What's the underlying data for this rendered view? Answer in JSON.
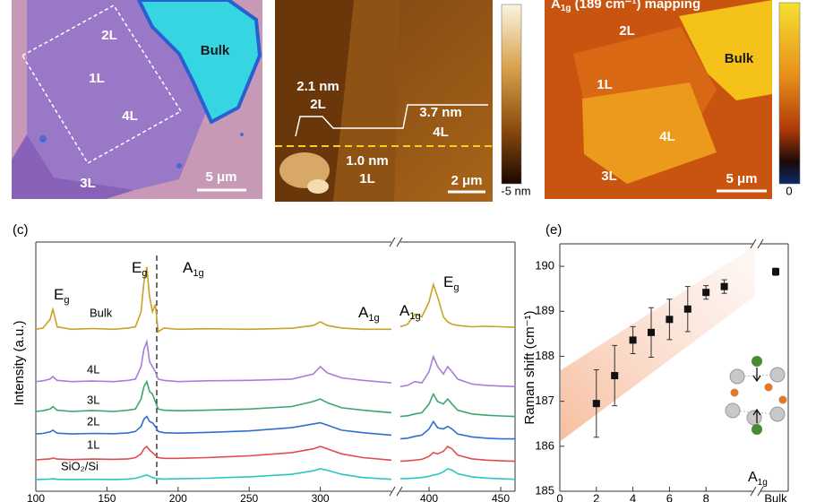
{
  "images": [
    {
      "labels": [
        "2L",
        "1L",
        "4L",
        "3L",
        "Bulk"
      ],
      "scale_bar": "5 μm"
    },
    {
      "labels": [
        "2.1 nm",
        "2L",
        "3.7 nm",
        "4L",
        "1.0 nm",
        "1L"
      ],
      "scale_bar": "2 μm",
      "colorbar_label": "-5 nm"
    },
    {
      "title": [
        "A",
        "1g",
        " (189 cm⁻¹) mapping"
      ],
      "labels": [
        "2L",
        "Bulk",
        "1L",
        "4L",
        "3L"
      ],
      "scale_bar": "5 μm",
      "colorbar_label": "0"
    }
  ],
  "chart_data": [
    {
      "type": "line",
      "panel_label": "(c)",
      "ylabel": "Intensity (a.u.)",
      "x": [
        [
          100,
          105,
          110,
          112,
          115,
          125,
          140,
          155,
          165,
          170,
          174,
          176,
          178,
          180,
          182,
          184,
          186,
          190,
          200,
          220,
          250,
          280,
          295,
          300,
          305,
          315,
          330,
          350
        ],
        [
          380,
          385,
          390,
          395,
          400,
          403,
          406,
          410,
          413,
          416,
          420,
          430,
          440,
          450,
          460
        ]
      ],
      "xlim": [
        [
          100,
          350
        ],
        [
          380,
          460
        ]
      ],
      "xticks": [
        [
          100,
          150,
          200,
          250,
          300
        ],
        [
          400,
          450
        ]
      ],
      "ylim": [
        0,
        100
      ],
      "vline": 185,
      "series": [
        {
          "name": "Bulk",
          "color": "#c9a227",
          "values": [
            [
              65,
              65.5,
              69,
              73,
              66,
              65,
              65.3,
              65,
              65.5,
              66,
              72,
              84,
              90,
              78,
              72,
              75,
              64,
              65.5,
              65,
              65.2,
              65,
              65.4,
              66.5,
              68,
              66.5,
              65.5,
              65,
              65
            ],
            [
              66,
              67,
              71,
              70,
              76,
              83,
              78,
              70,
              68,
              67,
              66.5,
              66,
              66.2,
              66,
              65.8
            ]
          ]
        },
        {
          "name": "4L",
          "color": "#a77fd6",
          "values": [
            [
              44,
              44.3,
              45,
              46,
              44.5,
              44,
              44.2,
              44,
              44.5,
              45,
              50,
              57,
              60,
              52,
              50,
              48,
              45,
              44.5,
              44,
              44.3,
              44.5,
              45,
              47,
              50,
              47.5,
              45.5,
              44.5,
              43.5
            ],
            [
              42,
              42.5,
              44,
              43.5,
              48,
              54,
              50,
              47,
              50,
              48,
              45,
              43,
              42.5,
              42.2,
              42
            ]
          ]
        },
        {
          "name": "3L",
          "color": "#3aa76d",
          "values": [
            [
              32,
              32.3,
              33,
              34,
              32.5,
              32,
              32.4,
              32,
              32.5,
              33,
              37,
              42,
              44,
              40,
              39,
              36,
              33,
              32.5,
              32.3,
              32.5,
              33,
              34,
              36,
              37,
              35.5,
              33.5,
              32.5,
              31.5
            ],
            [
              30,
              30.3,
              31,
              31.5,
              35,
              39,
              36,
              35,
              37,
              35,
              32.5,
              31,
              30.5,
              30.2,
              30
            ]
          ]
        },
        {
          "name": "2L",
          "color": "#2f6fd1",
          "values": [
            [
              23,
              23.2,
              23.8,
              24.5,
              23.3,
              23,
              23.2,
              23.1,
              23.4,
              24,
              26,
              29,
              30,
              28,
              27.5,
              26,
              24,
              23.5,
              23.3,
              23.6,
              24.2,
              25.5,
              27,
              27.5,
              26.5,
              24.5,
              23.5,
              22.5
            ],
            [
              21,
              21.3,
              22,
              22.5,
              25,
              28,
              25.5,
              25,
              26,
              25,
              23,
              21.8,
              21.3,
              21,
              21
            ]
          ]
        },
        {
          "name": "1L",
          "color": "#e24c4c",
          "values": [
            [
              12.6,
              12.8,
              13,
              13.3,
              12.9,
              12.7,
              12.9,
              12.8,
              13,
              13.5,
              15,
              17,
              18,
              16.5,
              15.5,
              14.5,
              13.5,
              13.2,
              13.2,
              13.5,
              14.2,
              15.5,
              17,
              18,
              17,
              15,
              13.5,
              12.5
            ],
            [
              12,
              12.2,
              12.5,
              12.8,
              14,
              15.5,
              15,
              16,
              18,
              17,
              14.5,
              13,
              12.5,
              12.2,
              12
            ]
          ]
        },
        {
          "name": "SiO₂/Si",
          "color": "#2ec4c4",
          "values": [
            [
              4.7,
              4.8,
              4.9,
              5,
              4.8,
              4.7,
              4.8,
              4.7,
              4.9,
              5.2,
              5.8,
              6.2,
              6.5,
              6,
              5.5,
              5.2,
              5,
              4.9,
              5,
              5.2,
              5.8,
              6.8,
              8.2,
              9,
              8.4,
              6.8,
              5.5,
              4.8
            ],
            [
              5,
              5.1,
              5.3,
              5.5,
              6,
              6.5,
              6.8,
              7.8,
              9,
              8.5,
              7,
              5.8,
              5.3,
              5,
              4.8
            ]
          ]
        }
      ],
      "annotations": [
        {
          "text": "E",
          "sub": "g"
        },
        {
          "text": "E",
          "sub": "g"
        },
        {
          "text": "A",
          "sub": "1g"
        },
        {
          "text": "A",
          "sub": "1g"
        },
        {
          "text": "A",
          "sub": "1g"
        },
        {
          "text": "E",
          "sub": "g"
        }
      ]
    },
    {
      "type": "scatter",
      "panel_label": "(e)",
      "ylabel": "Raman shift (cm⁻¹)",
      "x": [
        2,
        3,
        4,
        5,
        6,
        7,
        8,
        9
      ],
      "values": [
        186.95,
        187.57,
        188.36,
        188.53,
        188.82,
        189.05,
        189.42,
        189.55
      ],
      "errors": [
        0.75,
        0.67,
        0.3,
        0.55,
        0.45,
        0.5,
        0.15,
        0.15
      ],
      "bulk": {
        "label": "Bulk",
        "value": 189.88,
        "error": 0.08
      },
      "xlim": [
        0,
        10
      ],
      "xticks": [
        0,
        2,
        4,
        6,
        8
      ],
      "ylim": [
        185,
        190.5
      ],
      "yticks": [
        185,
        186,
        187,
        188,
        189,
        190
      ],
      "color": "#111111",
      "inset_label": {
        "text": "A",
        "sub": "1g"
      }
    }
  ]
}
